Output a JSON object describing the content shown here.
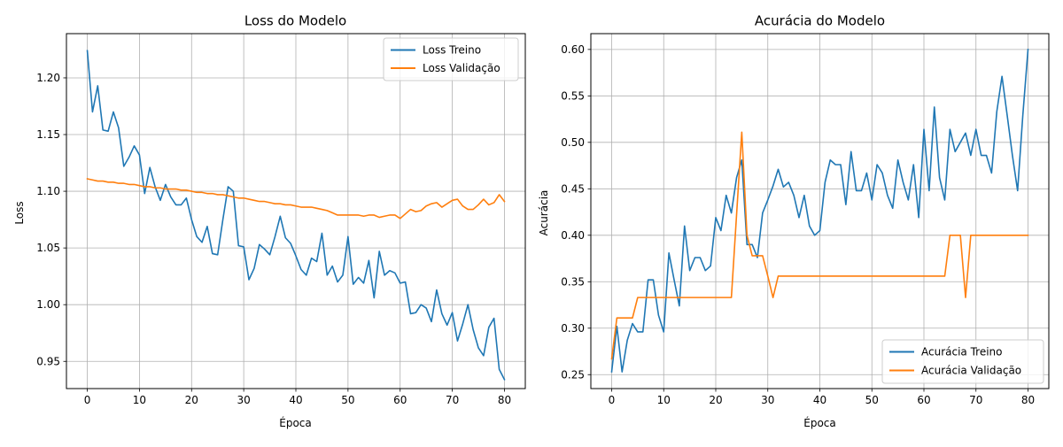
{
  "colors": {
    "train": "#1f77b4",
    "val": "#ff7f0e",
    "grid": "#b0b0b0"
  },
  "chart_data": [
    {
      "type": "line",
      "title": "Loss do Modelo",
      "xlabel": "Época",
      "ylabel": "Loss",
      "xlim": [
        -4,
        84
      ],
      "ylim": [
        0.926,
        1.239
      ],
      "xticks": [
        0,
        10,
        20,
        30,
        40,
        50,
        60,
        70,
        80
      ],
      "yticks": [
        0.95,
        1.0,
        1.05,
        1.1,
        1.15,
        1.2
      ],
      "ytick_decimals": 2,
      "grid": true,
      "legend": "top-right",
      "x": [
        0,
        1,
        2,
        3,
        4,
        5,
        6,
        7,
        8,
        9,
        10,
        11,
        12,
        13,
        14,
        15,
        16,
        17,
        18,
        19,
        20,
        21,
        22,
        23,
        24,
        25,
        26,
        27,
        28,
        29,
        30,
        31,
        32,
        33,
        34,
        35,
        36,
        37,
        38,
        39,
        40,
        41,
        42,
        43,
        44,
        45,
        46,
        47,
        48,
        49,
        50,
        51,
        52,
        53,
        54,
        55,
        56,
        57,
        58,
        59,
        60,
        61,
        62,
        63,
        64,
        65,
        66,
        67,
        68,
        69,
        70,
        71,
        72,
        73,
        74,
        75,
        76,
        77,
        78,
        79,
        80
      ],
      "series": [
        {
          "name": "Loss Treino",
          "color_key": "train",
          "values": [
            1.224,
            1.17,
            1.193,
            1.154,
            1.153,
            1.17,
            1.156,
            1.122,
            1.13,
            1.14,
            1.132,
            1.098,
            1.121,
            1.104,
            1.092,
            1.106,
            1.095,
            1.088,
            1.088,
            1.094,
            1.075,
            1.06,
            1.055,
            1.069,
            1.045,
            1.044,
            1.075,
            1.104,
            1.1,
            1.052,
            1.051,
            1.022,
            1.032,
            1.053,
            1.049,
            1.044,
            1.06,
            1.078,
            1.059,
            1.054,
            1.043,
            1.031,
            1.026,
            1.041,
            1.038,
            1.063,
            1.026,
            1.034,
            1.02,
            1.026,
            1.06,
            1.018,
            1.024,
            1.019,
            1.039,
            1.006,
            1.047,
            1.026,
            1.03,
            1.028,
            1.019,
            1.02,
            0.992,
            0.993,
            1.0,
            0.997,
            0.985,
            1.013,
            0.992,
            0.982,
            0.993,
            0.968,
            0.983,
            1.0,
            0.978,
            0.962,
            0.955,
            0.98,
            0.988,
            0.943,
            0.934
          ]
        },
        {
          "name": "Loss Validação",
          "color_key": "val",
          "values": [
            1.111,
            1.11,
            1.109,
            1.109,
            1.108,
            1.108,
            1.107,
            1.107,
            1.106,
            1.106,
            1.105,
            1.104,
            1.104,
            1.103,
            1.103,
            1.102,
            1.102,
            1.102,
            1.101,
            1.101,
            1.1,
            1.099,
            1.099,
            1.098,
            1.098,
            1.097,
            1.097,
            1.096,
            1.095,
            1.094,
            1.094,
            1.093,
            1.092,
            1.091,
            1.091,
            1.09,
            1.089,
            1.089,
            1.088,
            1.088,
            1.087,
            1.086,
            1.086,
            1.086,
            1.085,
            1.084,
            1.083,
            1.081,
            1.079,
            1.079,
            1.079,
            1.079,
            1.079,
            1.078,
            1.079,
            1.079,
            1.077,
            1.078,
            1.079,
            1.079,
            1.076,
            1.08,
            1.084,
            1.082,
            1.083,
            1.087,
            1.089,
            1.09,
            1.086,
            1.089,
            1.092,
            1.093,
            1.087,
            1.084,
            1.084,
            1.088,
            1.093,
            1.088,
            1.09,
            1.097,
            1.091
          ]
        }
      ]
    },
    {
      "type": "line",
      "title": "Acurácia do Modelo",
      "xlabel": "Época",
      "ylabel": "Acurácia",
      "xlim": [
        -4,
        84
      ],
      "ylim": [
        0.235,
        0.617
      ],
      "xticks": [
        0,
        10,
        20,
        30,
        40,
        50,
        60,
        70,
        80
      ],
      "yticks": [
        0.25,
        0.3,
        0.35,
        0.4,
        0.45,
        0.5,
        0.55,
        0.6
      ],
      "ytick_decimals": 2,
      "grid": true,
      "legend": "bottom-right",
      "x": [
        0,
        1,
        2,
        3,
        4,
        5,
        6,
        7,
        8,
        9,
        10,
        11,
        12,
        13,
        14,
        15,
        16,
        17,
        18,
        19,
        20,
        21,
        22,
        23,
        24,
        25,
        26,
        27,
        28,
        29,
        30,
        31,
        32,
        33,
        34,
        35,
        36,
        37,
        38,
        39,
        40,
        41,
        42,
        43,
        44,
        45,
        46,
        47,
        48,
        49,
        50,
        51,
        52,
        53,
        54,
        55,
        56,
        57,
        58,
        59,
        60,
        61,
        62,
        63,
        64,
        65,
        66,
        67,
        68,
        69,
        70,
        71,
        72,
        73,
        74,
        75,
        76,
        77,
        78,
        79,
        80
      ],
      "series": [
        {
          "name": "Acurácia Treino",
          "color_key": "train",
          "values": [
            0.253,
            0.302,
            0.253,
            0.287,
            0.305,
            0.296,
            0.296,
            0.352,
            0.352,
            0.314,
            0.296,
            0.381,
            0.352,
            0.324,
            0.41,
            0.362,
            0.376,
            0.376,
            0.362,
            0.367,
            0.419,
            0.405,
            0.443,
            0.424,
            0.462,
            0.481,
            0.39,
            0.39,
            0.376,
            0.424,
            0.438,
            0.453,
            0.471,
            0.452,
            0.457,
            0.443,
            0.419,
            0.443,
            0.41,
            0.4,
            0.405,
            0.457,
            0.481,
            0.476,
            0.476,
            0.433,
            0.49,
            0.448,
            0.448,
            0.467,
            0.438,
            0.476,
            0.467,
            0.443,
            0.429,
            0.481,
            0.457,
            0.438,
            0.476,
            0.419,
            0.514,
            0.448,
            0.538,
            0.462,
            0.438,
            0.514,
            0.49,
            0.5,
            0.51,
            0.486,
            0.514,
            0.486,
            0.486,
            0.467,
            0.533,
            0.571,
            0.529,
            0.486,
            0.448,
            0.529,
            0.6
          ]
        },
        {
          "name": "Acurácia Validação",
          "color_key": "val",
          "values": [
            0.267,
            0.311,
            0.311,
            0.311,
            0.311,
            0.333,
            0.333,
            0.333,
            0.333,
            0.333,
            0.333,
            0.333,
            0.333,
            0.333,
            0.333,
            0.333,
            0.333,
            0.333,
            0.333,
            0.333,
            0.333,
            0.333,
            0.333,
            0.333,
            0.422,
            0.511,
            0.4,
            0.378,
            0.378,
            0.378,
            0.356,
            0.333,
            0.356,
            0.356,
            0.356,
            0.356,
            0.356,
            0.356,
            0.356,
            0.356,
            0.356,
            0.356,
            0.356,
            0.356,
            0.356,
            0.356,
            0.356,
            0.356,
            0.356,
            0.356,
            0.356,
            0.356,
            0.356,
            0.356,
            0.356,
            0.356,
            0.356,
            0.356,
            0.356,
            0.356,
            0.356,
            0.356,
            0.356,
            0.356,
            0.356,
            0.4,
            0.4,
            0.4,
            0.333,
            0.4,
            0.4,
            0.4,
            0.4,
            0.4,
            0.4,
            0.4,
            0.4,
            0.4,
            0.4,
            0.4,
            0.4
          ]
        }
      ]
    }
  ]
}
